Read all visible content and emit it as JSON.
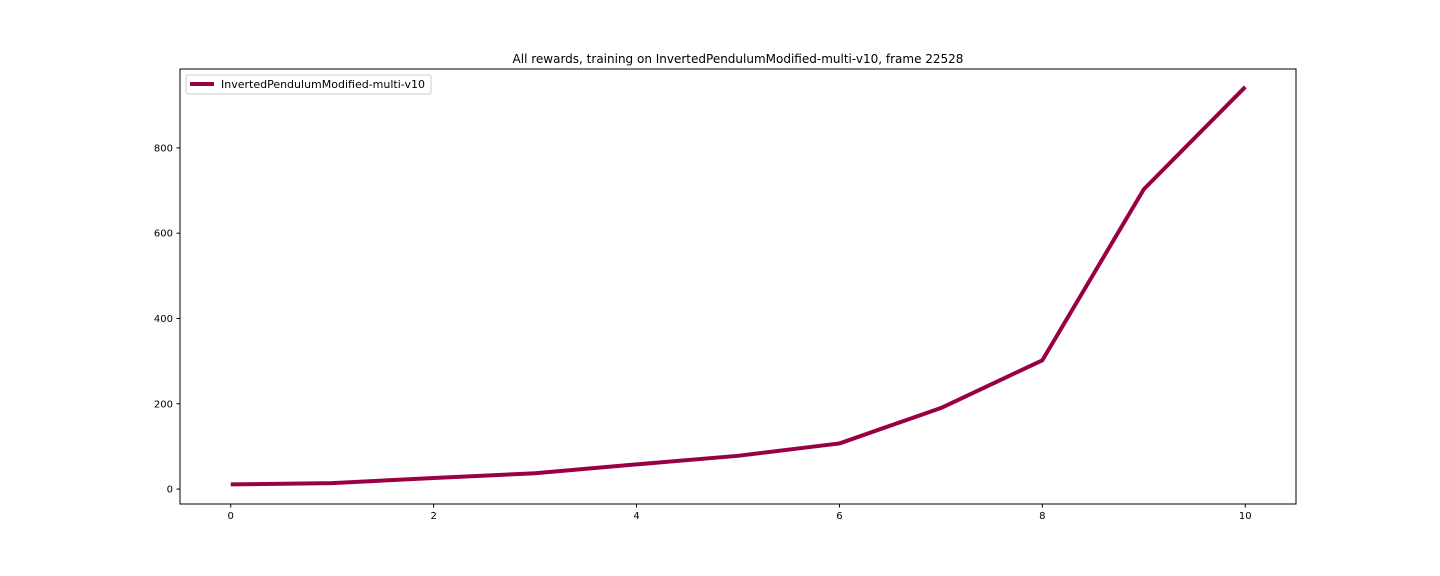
{
  "chart_data": {
    "type": "line",
    "title": "All rewards, training on InvertedPendulumModified-multi-v10, frame 22528",
    "xlabel": "",
    "ylabel": "",
    "xlim": [
      -0.5,
      10.5
    ],
    "ylim": [
      -35,
      985
    ],
    "x_ticks": [
      0,
      2,
      4,
      6,
      8,
      10
    ],
    "y_ticks": [
      0,
      200,
      400,
      600,
      800
    ],
    "grid": false,
    "legend_position": "upper-left",
    "series": [
      {
        "name": "InvertedPendulumModified-multi-v10",
        "color": "#990044",
        "x": [
          0,
          1,
          2,
          3,
          4,
          5,
          6,
          7,
          8,
          9,
          10
        ],
        "y": [
          11,
          14,
          26,
          37,
          58,
          78,
          107,
          190,
          302,
          703,
          943
        ]
      }
    ]
  }
}
